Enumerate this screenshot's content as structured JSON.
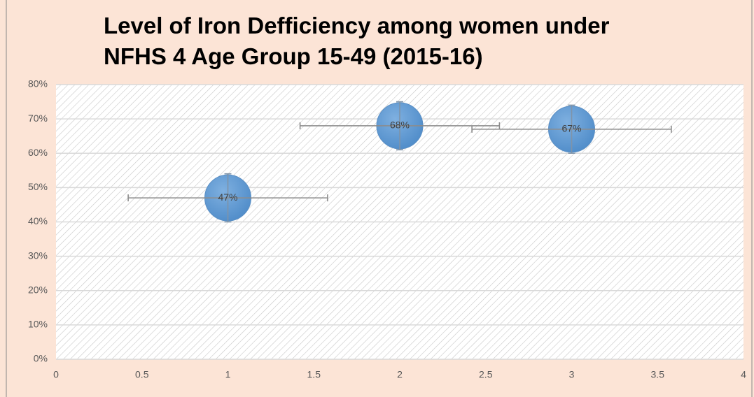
{
  "chart_data": {
    "type": "bubble",
    "title": [
      "Level of Iron Defficiency among women under",
      "NFHS 4 Age Group 15-49 (2015-16)"
    ],
    "x": [
      1,
      2,
      3
    ],
    "y": [
      47,
      68,
      67
    ],
    "value_labels": [
      "47%",
      "68%",
      "67%"
    ],
    "x_errors": [
      0.58,
      0.58,
      0.58
    ],
    "y_errors": [
      7,
      7,
      7
    ],
    "color": "#5b9bd5",
    "xlim": [
      0,
      4
    ],
    "xticks": [
      0,
      0.5,
      1,
      1.5,
      2,
      2.5,
      3,
      3.5,
      4
    ],
    "ylim": [
      0,
      80
    ],
    "yticks": [
      {
        "value": 0,
        "label": "0%"
      },
      {
        "value": 10,
        "label": "10%"
      },
      {
        "value": 20,
        "label": "20%"
      },
      {
        "value": 30,
        "label": "30%"
      },
      {
        "value": 40,
        "label": "40%"
      },
      {
        "value": 50,
        "label": "50%"
      },
      {
        "value": 60,
        "label": "60%"
      },
      {
        "value": 70,
        "label": "70%"
      },
      {
        "value": 80,
        "label": "80%"
      }
    ],
    "grid": true
  }
}
